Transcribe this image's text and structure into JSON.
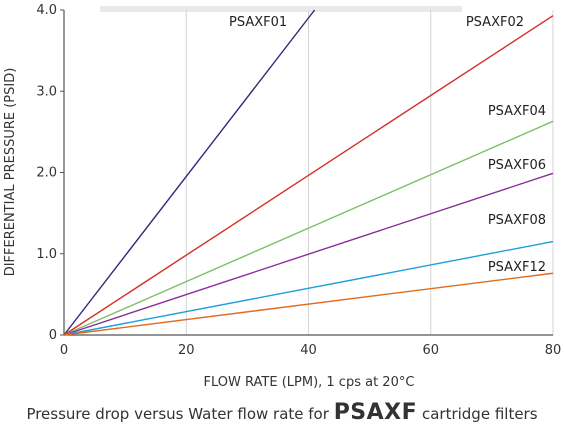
{
  "chart_data": {
    "type": "line",
    "xlabel": "FLOW RATE (LPM), 1 cps at 20°C",
    "ylabel": "DIFFERENTIAL PRESSURE (PSID)",
    "xlim": [
      0,
      80
    ],
    "ylim": [
      0,
      4
    ],
    "xticks": [
      "0",
      "20",
      "40",
      "60",
      "80"
    ],
    "yticks": [
      "0",
      "1.0",
      "2.0",
      "3.0",
      "4.0"
    ],
    "grid": "vertical",
    "series": [
      {
        "name": "PSAXF01",
        "color": "#2e2a7a",
        "x": [
          0,
          41
        ],
        "y": [
          0,
          4.0
        ]
      },
      {
        "name": "PSAXF02",
        "color": "#d62d20",
        "x": [
          0,
          80
        ],
        "y": [
          0,
          3.93
        ]
      },
      {
        "name": "PSAXF04",
        "color": "#7cbf6a",
        "x": [
          0,
          80
        ],
        "y": [
          0,
          2.63
        ]
      },
      {
        "name": "PSAXF06",
        "color": "#8b2f9a",
        "x": [
          0,
          80
        ],
        "y": [
          0,
          1.99
        ]
      },
      {
        "name": "PSAXF08",
        "color": "#1e9fd8",
        "x": [
          0,
          80
        ],
        "y": [
          0,
          1.15
        ]
      },
      {
        "name": "PSAXF12",
        "color": "#e06a1f",
        "x": [
          0,
          80
        ],
        "y": [
          0,
          0.76
        ]
      }
    ]
  },
  "caption": {
    "text": "Pressure drop versus Water flow rate for",
    "brand": "PSAXF",
    "suffix": "cartridge filters"
  }
}
